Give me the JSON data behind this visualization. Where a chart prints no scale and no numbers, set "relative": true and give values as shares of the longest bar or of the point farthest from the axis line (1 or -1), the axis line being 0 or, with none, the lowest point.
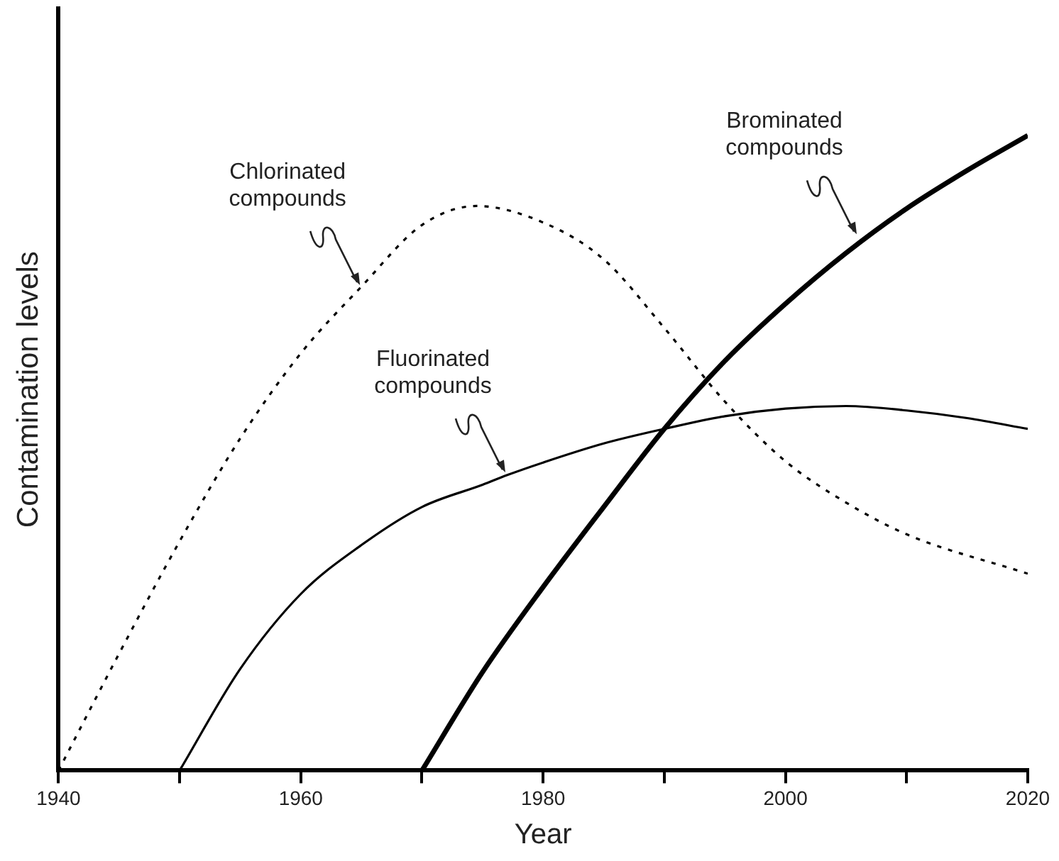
{
  "chart_data": {
    "type": "line",
    "xlabel": "Year",
    "ylabel": "Contamination levels",
    "relative": true,
    "xlim": [
      1940,
      2020
    ],
    "xticks": [
      1940,
      {
        "value": 1950,
        "label": null
      },
      1960,
      {
        "value": 1970,
        "label": null
      },
      1980,
      {
        "value": 1990,
        "label": null
      },
      2000,
      {
        "value": 2010,
        "label": null
      },
      2020
    ],
    "grid": false,
    "legend": false,
    "marker": "none",
    "series": [
      {
        "color": "#000000",
        "line_style": "dotted",
        "x": [
          1940,
          1945,
          1950,
          1955,
          1960,
          1965,
          1970,
          1974.5,
          1980,
          1985,
          1990,
          1995,
          2000,
          2005,
          2010,
          2020
        ],
        "values": [
          0,
          0.184,
          0.361,
          0.523,
          0.657,
          0.762,
          0.859,
          0.889,
          0.863,
          0.805,
          0.697,
          0.581,
          0.487,
          0.422,
          0.372,
          0.31
        ]
      },
      {
        "color": "#000000",
        "line_style": "solid",
        "x": [
          1950,
          1955,
          1960,
          1965,
          1970,
          1975,
          1977,
          1980,
          1985,
          1990,
          1995,
          2000,
          2005,
          2010,
          2015,
          2020
        ],
        "values": [
          0,
          0.16,
          0.278,
          0.355,
          0.415,
          0.45,
          0.465,
          0.485,
          0.515,
          0.538,
          0.558,
          0.57,
          0.574,
          0.567,
          0.555,
          0.538
        ]
      },
      {
        "color": "#000000",
        "line_style": "solid",
        "x": [
          1970,
          1975,
          1980,
          1985,
          1990,
          1995,
          2000,
          2005,
          2010,
          2015,
          2020
        ],
        "values": [
          0,
          0.155,
          0.289,
          0.415,
          0.538,
          0.645,
          0.735,
          0.815,
          0.885,
          0.945,
          1
        ]
      }
    ],
    "annotations": [
      {
        "text": "Chlorinated compounds",
        "x": 1965,
        "y": 0.76
      },
      {
        "text": "Fluorinated compounds",
        "x": 1977,
        "y": 0.465
      },
      {
        "text": "Brominated compounds",
        "x": 2006,
        "y": 0.84
      }
    ]
  }
}
